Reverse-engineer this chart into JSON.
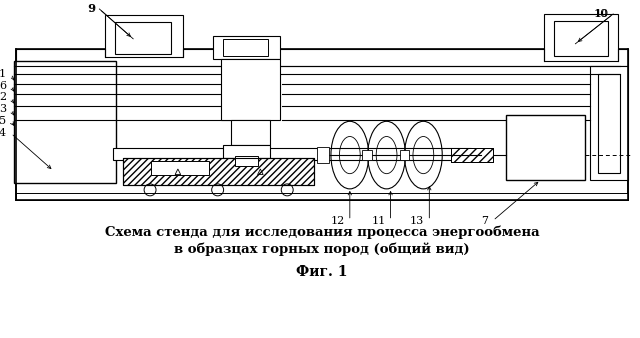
{
  "title_line1": "Схема стенда для исследования процесса энергообмена",
  "title_line2": "в образцах горных пород (общий вид)",
  "fig_label": "Фиг. 1",
  "bg_color": "#ffffff",
  "line_color": "#000000",
  "figsize": [
    6.4,
    3.38
  ],
  "dpi": 100
}
